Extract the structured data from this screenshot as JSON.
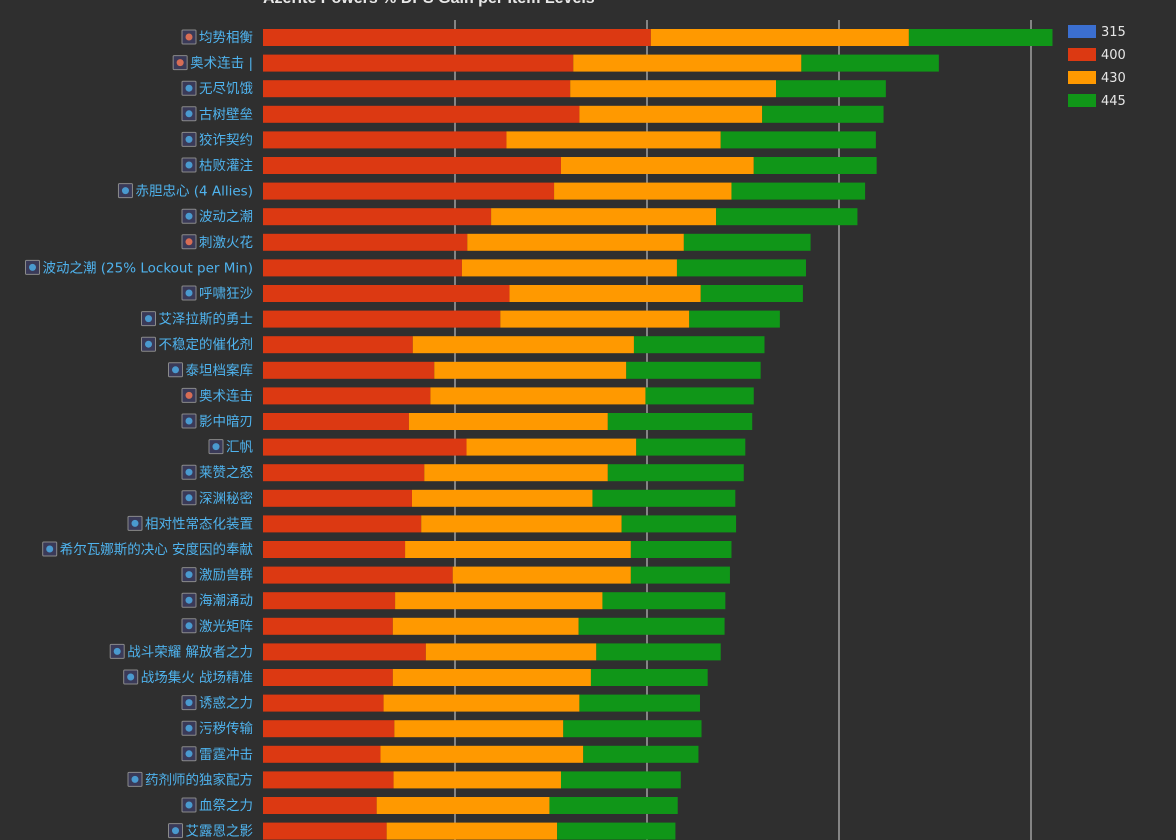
{
  "chart_data": {
    "type": "bar",
    "orientation": "horizontal",
    "stacked": true,
    "title": "Azerite Powers % DPS Gain per Item Levels",
    "xlim": [
      0,
      1
    ],
    "grid": true,
    "legend_position": "top-right",
    "categories": [
      "均势相衡",
      "奥术连击 |",
      "无尽饥饿",
      "古树壁垒",
      "狡诈契约",
      "枯败灌注",
      "赤胆忠心 (4 Allies)",
      "波动之潮",
      "刺激火花",
      "波动之潮 (25% Lockout per Min)",
      "呼啸狂沙",
      "艾泽拉斯的勇士",
      "不稳定的催化剂",
      "泰坦档案库",
      "奥术连击",
      "影中暗刃",
      "汇帆",
      "莱赞之怒",
      "深渊秘密",
      "相对性常态化装置",
      "希尔瓦娜斯的决心 安度因的奉献",
      "激励兽群",
      "海潮涌动",
      "激光矩阵",
      "战斗荣耀 解放者之力",
      "战场集火 战场精准",
      "诱惑之力",
      "污秽传输",
      "雷霆冲击",
      "药剂师的独家配方",
      "血祭之力",
      "艾露恩之影"
    ],
    "label_colors": [
      "#ff7a55",
      "#ff7a55",
      "#4fb3ee",
      "#4fb3ee",
      "#4fb3ee",
      "#4fb3ee",
      "#4fb3ee",
      "#4fb3ee",
      "#ff7a55",
      "#4fb3ee",
      "#4fb3ee",
      "#4fb3ee",
      "#4fb3ee",
      "#4fb3ee",
      "#ff7a55",
      "#4fb3ee",
      "#4fb3ee",
      "#4fb3ee",
      "#4fb3ee",
      "#4fb3ee",
      "#4fb3ee",
      "#4fb3ee",
      "#4fb3ee",
      "#4fb3ee",
      "#4fb3ee",
      "#4fb3ee",
      "#4fb3ee",
      "#4fb3ee",
      "#4fb3ee",
      "#4fb3ee",
      "#4fb3ee",
      "#4fb3ee"
    ],
    "series": [
      {
        "name": "315",
        "color": "#3b6fd0",
        "values": [
          0,
          0,
          0,
          0,
          0,
          0,
          0,
          0,
          0,
          0,
          0,
          0,
          0,
          0,
          0,
          0,
          0,
          0,
          0,
          0,
          0,
          0,
          0,
          0,
          0,
          0,
          0,
          0,
          0,
          0,
          0,
          0
        ]
      },
      {
        "name": "400",
        "color": "#dc3912",
        "values": [
          0.505,
          0.404,
          0.4,
          0.412,
          0.317,
          0.388,
          0.379,
          0.297,
          0.266,
          0.259,
          0.321,
          0.309,
          0.195,
          0.223,
          0.218,
          0.19,
          0.265,
          0.21,
          0.194,
          0.206,
          0.185,
          0.247,
          0.172,
          0.169,
          0.212,
          0.169,
          0.157,
          0.171,
          0.153,
          0.17,
          0.148,
          0.161
        ]
      },
      {
        "name": "430",
        "color": "#ff9900",
        "values": [
          0.336,
          0.297,
          0.268,
          0.238,
          0.279,
          0.251,
          0.231,
          0.293,
          0.282,
          0.28,
          0.249,
          0.246,
          0.288,
          0.25,
          0.28,
          0.259,
          0.221,
          0.239,
          0.235,
          0.261,
          0.294,
          0.232,
          0.27,
          0.242,
          0.222,
          0.258,
          0.255,
          0.22,
          0.264,
          0.218,
          0.225,
          0.222
        ]
      },
      {
        "name": "445",
        "color": "#109618",
        "values": [
          0.187,
          0.179,
          0.143,
          0.158,
          0.202,
          0.16,
          0.174,
          0.184,
          0.165,
          0.168,
          0.133,
          0.118,
          0.17,
          0.175,
          0.141,
          0.188,
          0.142,
          0.177,
          0.186,
          0.149,
          0.131,
          0.129,
          0.16,
          0.19,
          0.162,
          0.152,
          0.157,
          0.18,
          0.15,
          0.156,
          0.167,
          0.154
        ]
      }
    ]
  }
}
